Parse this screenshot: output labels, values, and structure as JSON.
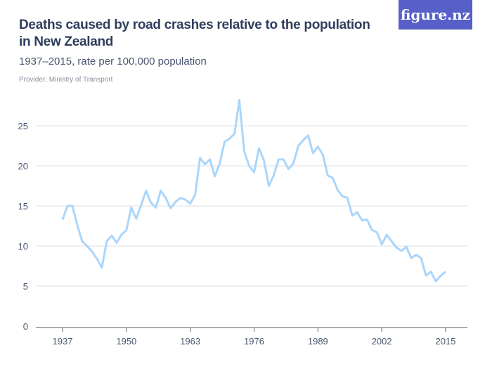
{
  "header": {
    "title": "Deaths caused by road crashes relative to the population in New Zealand",
    "subtitle": "1937–2015, rate per 100,000 population",
    "provider": "Provider: Ministry of Transport",
    "logo": "figure.nz"
  },
  "colors": {
    "line": "#abd6fb",
    "logo_bg": "#5660c8",
    "grid": "#e2e2e2",
    "axis": "#555b66"
  },
  "chart_data": {
    "type": "line",
    "title": "Deaths caused by road crashes relative to the population in New Zealand",
    "subtitle": "1937–2015, rate per 100,000 population",
    "xlabel": "",
    "ylabel": "",
    "xlim": [
      1937,
      2015
    ],
    "ylim": [
      0,
      28
    ],
    "grid": true,
    "x_ticks": [
      1937,
      1950,
      1963,
      1976,
      1989,
      2002,
      2015
    ],
    "y_ticks": [
      0,
      5,
      10,
      15,
      20,
      25
    ],
    "x_start": 1937,
    "values": [
      13.3,
      15.0,
      15.0,
      12.6,
      10.6,
      10.0,
      9.3,
      8.4,
      7.3,
      10.6,
      11.3,
      10.4,
      11.4,
      12.0,
      14.8,
      13.4,
      15.1,
      16.9,
      15.4,
      14.8,
      16.9,
      16.0,
      14.7,
      15.5,
      16.0,
      15.8,
      15.3,
      16.4,
      21.0,
      20.2,
      20.8,
      18.7,
      20.3,
      23.0,
      23.4,
      24.0,
      28.2,
      21.8,
      20.0,
      19.2,
      22.2,
      20.7,
      17.5,
      18.8,
      20.8,
      20.8,
      19.6,
      20.3,
      22.5,
      23.2,
      23.8,
      21.6,
      22.4,
      21.4,
      18.8,
      18.5,
      17.0,
      16.2,
      16.0,
      13.8,
      14.2,
      13.2,
      13.3,
      12.0,
      11.7,
      10.2,
      11.4,
      10.6,
      9.8,
      9.4,
      9.9,
      8.5,
      8.9,
      8.5,
      6.3,
      6.8,
      5.6,
      6.3,
      6.8
    ]
  }
}
